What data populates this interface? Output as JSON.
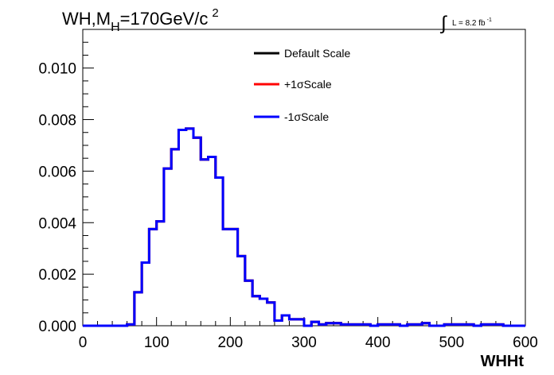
{
  "header": {
    "title_main": "WH,M",
    "title_sub": "H",
    "title_rest": "=170GeV/c",
    "title_sup": "2",
    "lumi_symbol": "∫",
    "lumi_text": "L = 8.2 fb",
    "lumi_sup": "-1"
  },
  "chart_data": {
    "type": "line",
    "title": "WH,MH=170GeV/c2",
    "xlabel": "WHHt",
    "ylabel": "",
    "xlim": [
      0,
      600
    ],
    "ylim": [
      0,
      0.0115
    ],
    "x_ticks": [
      0,
      100,
      200,
      300,
      400,
      500,
      600
    ],
    "x_tick_labels": [
      "0",
      "100",
      "200",
      "300",
      "400",
      "500",
      "600"
    ],
    "y_ticks": [
      0.0,
      0.002,
      0.004,
      0.006,
      0.008,
      0.01
    ],
    "y_tick_labels": [
      "0.000",
      "0.002",
      "0.004",
      "0.006",
      "0.008",
      "0.010"
    ],
    "grid": false,
    "legend_position": "top-center",
    "bin_edges": [
      0,
      10,
      20,
      30,
      40,
      50,
      60,
      70,
      80,
      90,
      100,
      110,
      120,
      130,
      140,
      150,
      160,
      170,
      180,
      190,
      200,
      210,
      220,
      230,
      240,
      250,
      260,
      270,
      280,
      290,
      300,
      310,
      320,
      330,
      340,
      350,
      360,
      370,
      380,
      390,
      400,
      410,
      420,
      430,
      440,
      450,
      460,
      470,
      480,
      490,
      500,
      510,
      520,
      530,
      540,
      550,
      560,
      570,
      580,
      590,
      600
    ],
    "series": [
      {
        "name": "Default Scale",
        "color": "#000000",
        "values": [
          0,
          0,
          0,
          0,
          0,
          0,
          5e-05,
          0.0013,
          0.00245,
          0.00375,
          0.00405,
          0.0061,
          0.00685,
          0.0076,
          0.00765,
          0.0073,
          0.00645,
          0.00655,
          0.00575,
          0.00375,
          0.00375,
          0.0027,
          0.00175,
          0.00115,
          0.00105,
          0.0009,
          0.0002,
          0.0004,
          0.00025,
          0.00025,
          0,
          0.00015,
          5e-05,
          0.0001,
          0.0001,
          5e-05,
          5e-05,
          5e-05,
          5e-05,
          0,
          5e-05,
          5e-05,
          5e-05,
          0,
          5e-05,
          5e-05,
          0.0001,
          0,
          0,
          5e-05,
          5e-05,
          5e-05,
          5e-05,
          0,
          5e-05,
          5e-05,
          5e-05,
          0,
          0,
          0
        ]
      },
      {
        "name": "+1σScale",
        "color": "#ff0000",
        "values": [
          0,
          0,
          0,
          0,
          0,
          0,
          5e-05,
          0.0013,
          0.00245,
          0.00375,
          0.00405,
          0.0061,
          0.00685,
          0.0076,
          0.00765,
          0.0073,
          0.00645,
          0.00655,
          0.00575,
          0.00375,
          0.00375,
          0.0027,
          0.00175,
          0.00115,
          0.00105,
          0.0009,
          0.0002,
          0.0004,
          0.00025,
          0.00025,
          0,
          0.00015,
          5e-05,
          0.0001,
          0.0001,
          5e-05,
          5e-05,
          5e-05,
          5e-05,
          0,
          5e-05,
          5e-05,
          5e-05,
          0,
          5e-05,
          5e-05,
          0.0001,
          0,
          0,
          5e-05,
          5e-05,
          5e-05,
          5e-05,
          0,
          5e-05,
          5e-05,
          5e-05,
          0,
          0,
          0
        ]
      },
      {
        "name": "-1σScale",
        "color": "#0000ff",
        "values": [
          0,
          0,
          0,
          0,
          0,
          0,
          5e-05,
          0.0013,
          0.00245,
          0.00375,
          0.00405,
          0.0061,
          0.00685,
          0.0076,
          0.00765,
          0.0073,
          0.00645,
          0.00655,
          0.00575,
          0.00375,
          0.00375,
          0.0027,
          0.00175,
          0.00115,
          0.00105,
          0.0009,
          0.0002,
          0.0004,
          0.00025,
          0.00025,
          0,
          0.00015,
          5e-05,
          0.0001,
          0.0001,
          5e-05,
          5e-05,
          5e-05,
          5e-05,
          0,
          5e-05,
          5e-05,
          5e-05,
          0,
          5e-05,
          5e-05,
          0.0001,
          0,
          0,
          5e-05,
          5e-05,
          5e-05,
          5e-05,
          0,
          5e-05,
          5e-05,
          5e-05,
          0,
          0,
          0
        ]
      }
    ]
  }
}
